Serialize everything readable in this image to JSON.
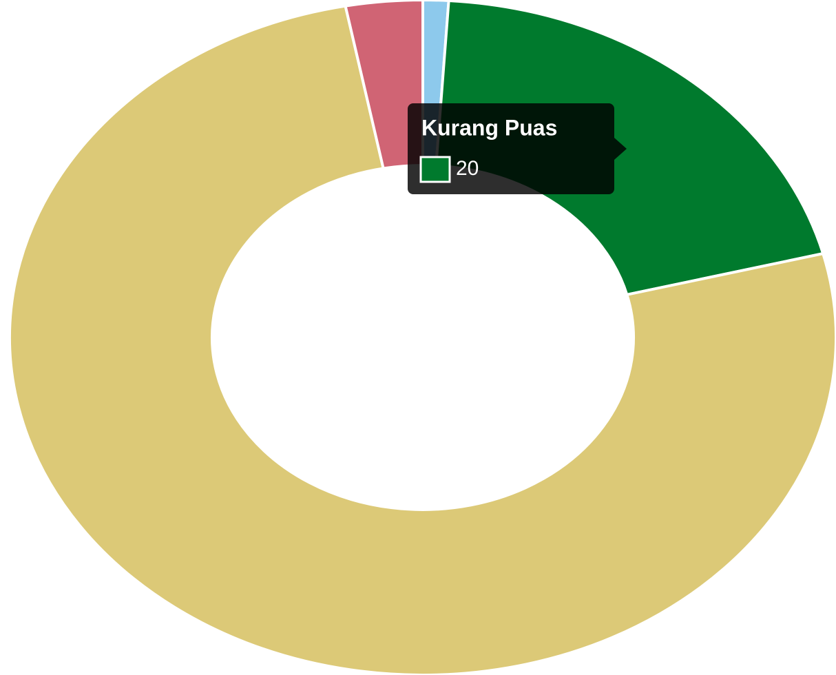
{
  "chart_data": {
    "type": "doughnut",
    "categories": [
      null,
      "Kurang Puas",
      null,
      null
    ],
    "values": [
      1,
      20,
      76,
      3
    ],
    "colors": [
      "#8dc9ec",
      "#007a2d",
      "#dcc977",
      "#d06474"
    ],
    "tooltip_index": 1
  }
}
